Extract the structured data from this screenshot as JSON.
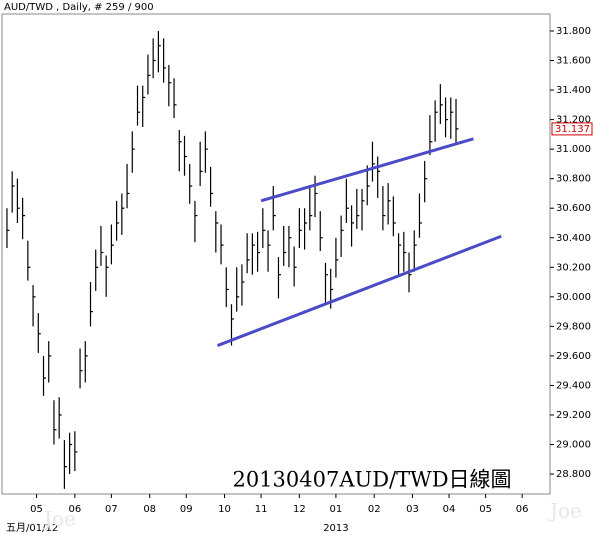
{
  "chart_data": {
    "type": "hlc",
    "title": "AUD/TWD , Daily, # 259 / 900",
    "annotation": "20130407AUD/TWD日線圖",
    "watermark": "Joe",
    "date_label": "五月/01/12",
    "year_label": "2013",
    "color": "#000000",
    "last_color": "#d00000",
    "xlim": [
      -4,
      312
    ],
    "ylim": [
      28.665,
      31.915
    ],
    "xticks": [
      {
        "value": 17,
        "label": "05"
      },
      {
        "value": 39,
        "label": "06"
      },
      {
        "value": 60,
        "label": "07"
      },
      {
        "value": 82,
        "label": "08"
      },
      {
        "value": 103,
        "label": "09"
      },
      {
        "value": 125,
        "label": "10"
      },
      {
        "value": 146,
        "label": "11"
      },
      {
        "value": 168,
        "label": "12"
      },
      {
        "value": 189,
        "label": "01"
      },
      {
        "value": 211,
        "label": "02"
      },
      {
        "value": 233,
        "label": "03"
      },
      {
        "value": 254,
        "label": "04"
      },
      {
        "value": 275,
        "label": "05"
      },
      {
        "value": 296,
        "label": "06"
      }
    ],
    "year_tick": 189,
    "yticks": [
      {
        "value": 28.8,
        "label": "28.800"
      },
      {
        "value": 29.0,
        "label": "29.000"
      },
      {
        "value": 29.2,
        "label": "29.200"
      },
      {
        "value": 29.4,
        "label": "29.400"
      },
      {
        "value": 29.6,
        "label": "29.600"
      },
      {
        "value": 29.8,
        "label": "29.800"
      },
      {
        "value": 30.0,
        "label": "30.000"
      },
      {
        "value": 30.2,
        "label": "30.200"
      },
      {
        "value": 30.4,
        "label": "30.400"
      },
      {
        "value": 30.6,
        "label": "30.600"
      },
      {
        "value": 30.8,
        "label": "30.800"
      },
      {
        "value": 31.0,
        "label": "31.000"
      },
      {
        "value": 31.2,
        "label": "31.200"
      },
      {
        "value": 31.4,
        "label": "31.400"
      },
      {
        "value": 31.6,
        "label": "31.600"
      },
      {
        "value": 31.8,
        "label": "31.800"
      }
    ],
    "x": [
      0,
      3,
      6,
      9,
      12,
      15,
      18,
      21,
      24,
      27,
      30,
      33,
      36,
      39,
      42,
      45,
      48,
      51,
      54,
      57,
      60,
      63,
      66,
      69,
      72,
      75,
      78,
      81,
      84,
      87,
      90,
      93,
      96,
      99,
      102,
      105,
      108,
      111,
      114,
      117,
      120,
      123,
      126,
      129,
      132,
      135,
      138,
      141,
      144,
      147,
      150,
      153,
      156,
      159,
      162,
      165,
      168,
      171,
      174,
      177,
      180,
      183,
      186,
      189,
      192,
      195,
      198,
      201,
      204,
      207,
      210,
      213,
      216,
      219,
      222,
      225,
      228,
      231,
      234,
      237,
      240,
      243,
      246,
      249,
      252,
      255,
      258
    ],
    "high": [
      30.6,
      30.85,
      30.8,
      30.67,
      30.38,
      30.08,
      29.89,
      29.6,
      29.7,
      29.3,
      29.32,
      29.03,
      29.08,
      29.09,
      29.65,
      29.7,
      30.1,
      30.32,
      30.48,
      30.28,
      30.49,
      30.65,
      30.7,
      30.9,
      31.12,
      31.43,
      31.43,
      31.64,
      31.75,
      31.8,
      31.75,
      31.57,
      31.48,
      31.13,
      31.09,
      30.9,
      30.65,
      31.05,
      31.12,
      30.88,
      30.58,
      30.49,
      30.2,
      29.95,
      30.2,
      30.22,
      30.43,
      30.43,
      30.44,
      30.6,
      30.45,
      30.75,
      30.27,
      30.48,
      30.48,
      30.34,
      30.6,
      30.6,
      30.75,
      30.82,
      30.58,
      30.23,
      30.19,
      30.4,
      30.55,
      30.8,
      30.62,
      30.73,
      30.73,
      30.89,
      31.05,
      30.95,
      30.75,
      30.77,
      30.68,
      30.43,
      30.44,
      30.3,
      30.45,
      30.7,
      30.92,
      31.23,
      31.33,
      31.44,
      31.35,
      31.35,
      31.34
    ],
    "low": [
      30.33,
      30.57,
      30.5,
      30.39,
      30.11,
      29.8,
      29.62,
      29.33,
      29.42,
      29.0,
      29.04,
      28.7,
      28.8,
      28.82,
      29.38,
      29.42,
      29.8,
      30.04,
      30.21,
      30.0,
      30.22,
      30.38,
      30.42,
      30.6,
      30.84,
      31.16,
      31.15,
      31.37,
      31.48,
      31.52,
      31.45,
      31.29,
      31.21,
      30.85,
      30.82,
      30.63,
      30.37,
      30.75,
      30.84,
      30.61,
      30.3,
      30.22,
      29.93,
      29.67,
      29.9,
      29.94,
      30.16,
      30.15,
      30.17,
      30.33,
      30.17,
      30.45,
      29.99,
      30.21,
      30.2,
      30.07,
      30.33,
      30.32,
      30.45,
      30.54,
      30.31,
      29.95,
      29.92,
      30.13,
      30.27,
      30.5,
      30.34,
      30.46,
      30.45,
      30.62,
      30.78,
      30.67,
      30.45,
      30.49,
      30.41,
      30.15,
      30.17,
      30.03,
      30.17,
      30.4,
      30.64,
      30.96,
      31.05,
      31.17,
      31.08,
      31.07,
      31.04
    ],
    "close": [
      30.45,
      30.75,
      30.6,
      30.55,
      30.2,
      30.0,
      29.75,
      29.45,
      29.6,
      29.1,
      29.2,
      28.85,
      29.0,
      28.95,
      29.5,
      29.6,
      29.9,
      30.2,
      30.3,
      30.2,
      30.35,
      30.5,
      30.6,
      30.7,
      31.0,
      31.25,
      31.35,
      31.5,
      31.6,
      31.7,
      31.55,
      31.45,
      31.3,
      31.05,
      30.95,
      30.75,
      30.55,
      30.85,
      31.0,
      30.7,
      30.5,
      30.35,
      30.05,
      29.85,
      30.0,
      30.1,
      30.25,
      30.35,
      30.3,
      30.45,
      30.35,
      30.55,
      30.15,
      30.3,
      30.4,
      30.2,
      30.45,
      30.5,
      30.55,
      30.7,
      30.4,
      30.15,
      30.05,
      30.25,
      30.45,
      30.6,
      30.5,
      30.55,
      30.65,
      30.75,
      30.9,
      30.85,
      30.55,
      30.65,
      30.5,
      30.35,
      30.3,
      30.15,
      30.35,
      30.5,
      30.8,
      31.05,
      31.25,
      31.3,
      31.2,
      31.25,
      31.137
    ],
    "trendline_color": "#4b4bc8",
    "trendlines": [
      {
        "x": [
          146,
          268
        ],
        "y": [
          30.65,
          31.07
        ]
      },
      {
        "x": [
          121,
          284
        ],
        "y": [
          29.67,
          30.41
        ]
      }
    ]
  }
}
